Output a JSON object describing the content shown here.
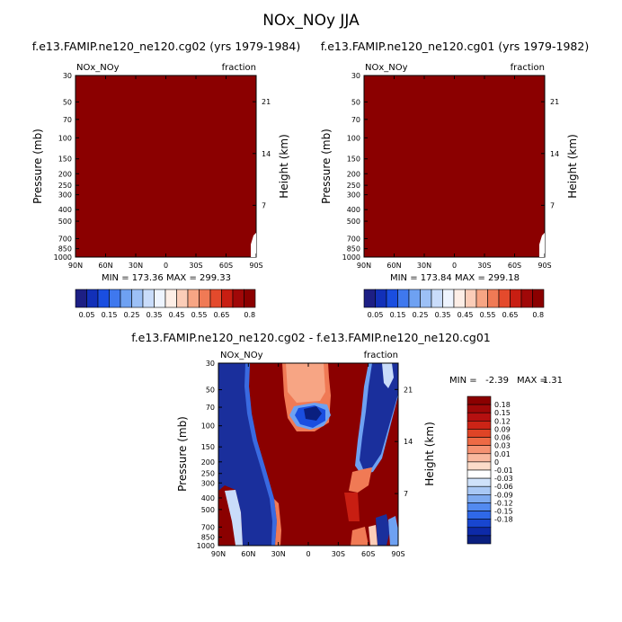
{
  "figure": {
    "title": "NOx_NOy JJA"
  },
  "colors": {
    "deep_red": "#8b0000",
    "white": "#ffffff",
    "cb_top": [
      "#1d1f84",
      "#1230b8",
      "#1a4ee0",
      "#3f78ee",
      "#6ea1f2",
      "#9cc0f6",
      "#c9dcfa",
      "#eef4fe",
      "#fdeee6",
      "#fbcdb8",
      "#f7a584",
      "#f07a55",
      "#e44a2c",
      "#c81e12",
      "#a00808",
      "#8b0000"
    ],
    "cb_bottom": [
      "#8b0000",
      "#9f0808",
      "#b51010",
      "#cc2416",
      "#df4426",
      "#ed6a45",
      "#f59272",
      "#f9b89e",
      "#fcdcc9",
      "#ffffff",
      "#cfe2fa",
      "#a9c8f5",
      "#7eaaf0",
      "#538af0",
      "#2f68e8",
      "#1846d0",
      "#0d2aa8",
      "#0a1f7f"
    ]
  },
  "chart_data": [
    {
      "type": "heatmap",
      "panel": "top-left",
      "title": "f.e13.FAMIP.ne120_ne120.cg02 (yrs 1979-1984)",
      "var_label": "NOx_NOy",
      "units_label": "fraction",
      "ylabel": "Pressure (mb)",
      "ylabel_right": "Height (km)",
      "x_ticks": [
        "90N",
        "60N",
        "30N",
        "0",
        "30S",
        "60S",
        "90S"
      ],
      "y_ticks": [
        "30",
        "50",
        "70",
        "100",
        "150",
        "200",
        "250",
        "300",
        "400",
        "500",
        "700",
        "850",
        "1000"
      ],
      "y_ticks_right": [
        "21",
        "14",
        "7"
      ],
      "min_max_text": "MIN = 173.36   MAX = 299.33",
      "fill": "uniform-deep-red",
      "colorbar_labels": [
        "0.05",
        "0.15",
        "0.25",
        "0.35",
        "0.45",
        "0.55",
        "0.65",
        "0.8"
      ]
    },
    {
      "type": "heatmap",
      "panel": "top-right",
      "title": "f.e13.FAMIP.ne120_ne120.cg01 (yrs 1979-1982)",
      "var_label": "NOx_NOy",
      "units_label": "fraction",
      "ylabel": "Pressure (mb)",
      "ylabel_right": "Height (km)",
      "x_ticks": [
        "90N",
        "60N",
        "30N",
        "0",
        "30S",
        "60S",
        "90S"
      ],
      "y_ticks": [
        "30",
        "50",
        "70",
        "100",
        "150",
        "200",
        "250",
        "300",
        "400",
        "500",
        "700",
        "850",
        "1000"
      ],
      "y_ticks_right": [
        "21",
        "14",
        "7"
      ],
      "min_max_text": "MIN = 173.84   MAX = 299.18",
      "fill": "uniform-deep-red",
      "colorbar_labels": [
        "0.05",
        "0.15",
        "0.25",
        "0.35",
        "0.45",
        "0.55",
        "0.65",
        "0.8"
      ]
    },
    {
      "type": "heatmap",
      "panel": "bottom-difference",
      "title": "f.e13.FAMIP.ne120_ne120.cg02 - f.e13.FAMIP.ne120_ne120.cg01",
      "var_label": "NOx_NOy",
      "units_label": "fraction",
      "ylabel": "Pressure (mb)",
      "ylabel_right": "Height (km)",
      "x_ticks": [
        "90N",
        "60N",
        "30N",
        "0",
        "30S",
        "60S",
        "90S"
      ],
      "y_ticks": [
        "30",
        "50",
        "70",
        "100",
        "150",
        "200",
        "250",
        "300",
        "400",
        "500",
        "700",
        "850",
        "1000"
      ],
      "y_ticks_right": [
        "21",
        "14",
        "7"
      ],
      "min_label": "MIN =",
      "min_value": "-2.39",
      "max_label": "MAX =",
      "max_value": "1.31",
      "colorbar_labels": [
        "0.18",
        "0.15",
        "0.12",
        "0.09",
        "0.06",
        "0.03",
        "0.01",
        "0",
        "-0.01",
        "-0.03",
        "-0.06",
        "-0.09",
        "-0.12",
        "-0.15",
        "-0.18"
      ]
    }
  ]
}
